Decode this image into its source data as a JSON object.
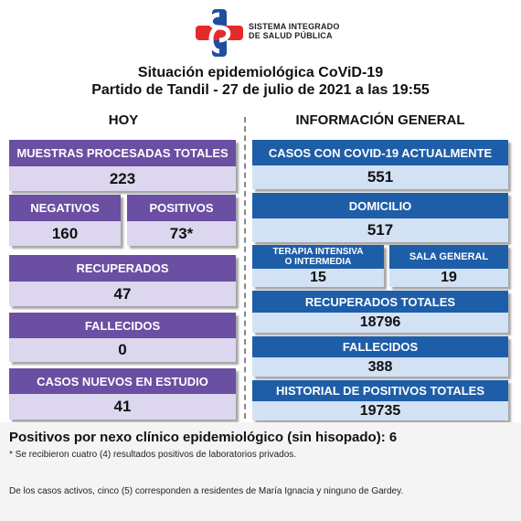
{
  "org": {
    "line1": "SISTEMA INTEGRADO",
    "line2": "DE SALUD PÚBLICA"
  },
  "title": {
    "line1": "Situación epidemiológica CoViD-19",
    "line2": "Partido de Tandil - 27 de julio de 2021 a las 19:55"
  },
  "columns": {
    "left": "HOY",
    "right": "INFORMACIÓN GENERAL"
  },
  "hoy": {
    "muestras": {
      "label": "MUESTRAS PROCESADAS TOTALES",
      "value": "223"
    },
    "negativos": {
      "label": "NEGATIVOS",
      "value": "160"
    },
    "positivos": {
      "label": "POSITIVOS",
      "value": "73*"
    },
    "recuperados": {
      "label": "RECUPERADOS",
      "value": "47"
    },
    "fallecidos": {
      "label": "FALLECIDOS",
      "value": "0"
    },
    "nuevos": {
      "label": "CASOS NUEVOS EN ESTUDIO",
      "value": "41"
    }
  },
  "general": {
    "casos": {
      "label": "CASOS CON COVID-19 ACTUALMENTE",
      "value": "551"
    },
    "domicilio": {
      "label": "DOMICILIO",
      "value": "517"
    },
    "terapia": {
      "label_line1": "TERAPIA INTENSIVA",
      "label_line2": "O INTERMEDIA",
      "value": "15"
    },
    "sala": {
      "label": "SALA GENERAL",
      "value": "19"
    },
    "recuperados": {
      "label": "RECUPERADOS TOTALES",
      "value": "18796"
    },
    "fallecidos": {
      "label": "FALLECIDOS",
      "value": "388"
    },
    "historial": {
      "label": "HISTORIAL DE POSITIVOS TOTALES",
      "value": "19735"
    }
  },
  "footer": {
    "main": "Positivos por nexo clínico epidemiológico (sin hisopado): 6",
    "note1": "* Se recibieron cuatro (4) resultados positivos de laboratorios privados.",
    "note2": "De los casos activos, cinco (5) corresponden a residentes de María Ignacia y ninguno de Gardey."
  },
  "colors": {
    "purple_header": "#6a4fa3",
    "purple_value": "#dcd6ef",
    "blue_header": "#1e5ea8",
    "blue_value": "#d2e1f3",
    "logo_red": "#e32b2b",
    "logo_blue": "#1e4f9c"
  },
  "icons": {
    "logo": "cross-logo-icon"
  }
}
